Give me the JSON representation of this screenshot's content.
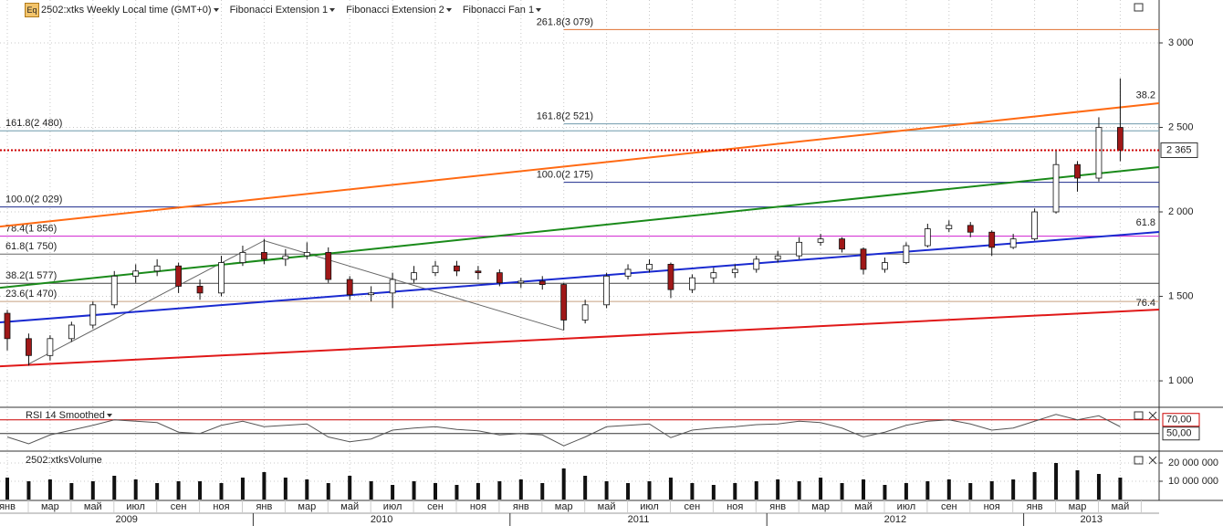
{
  "toolbar": {
    "icon": "Eq",
    "title": "2502:xtks Weekly Local time (GMT+0)",
    "studies": [
      "Fibonacci Extension 1",
      "Fibonacci Extension 2",
      "Fibonacci Fan 1"
    ]
  },
  "chart_data": [
    {
      "type": "candlestick",
      "ylim": [
        849,
        3254
      ],
      "yticks": [
        {
          "value": 1000,
          "label": "1 000"
        },
        {
          "value": 1500,
          "label": "1 500"
        },
        {
          "value": 2000,
          "label": "2 000"
        },
        {
          "value": 2500,
          "label": "2 500"
        },
        {
          "value": 3000,
          "label": "3 000"
        }
      ],
      "grid": true,
      "up_color": "#ffffff",
      "down_color": "#a01818",
      "open": [
        1400,
        1250,
        1150,
        1250,
        1330,
        1450,
        1620,
        1650,
        1680,
        1560,
        1520,
        1700,
        1760,
        1720,
        1740,
        1760,
        1600,
        1510,
        1520,
        1600,
        1640,
        1680,
        1650,
        1640,
        1580,
        1590,
        1570,
        1360,
        1450,
        1620,
        1660,
        1690,
        1540,
        1610,
        1640,
        1660,
        1720,
        1740,
        1820,
        1840,
        1780,
        1660,
        1700,
        1800,
        1900,
        1920,
        1880,
        1790,
        1840,
        2000,
        2280,
        2200,
        2500
      ],
      "high": [
        1420,
        1280,
        1270,
        1350,
        1470,
        1650,
        1690,
        1720,
        1700,
        1600,
        1740,
        1800,
        1840,
        1780,
        1820,
        1790,
        1620,
        1560,
        1640,
        1680,
        1710,
        1710,
        1680,
        1660,
        1610,
        1620,
        1580,
        1480,
        1640,
        1690,
        1720,
        1700,
        1630,
        1670,
        1690,
        1740,
        1770,
        1850,
        1870,
        1850,
        1790,
        1730,
        1820,
        1930,
        1950,
        1940,
        1890,
        1870,
        2020,
        2360,
        2300,
        2560,
        2790
      ],
      "low": [
        1180,
        1090,
        1120,
        1230,
        1310,
        1430,
        1580,
        1620,
        1520,
        1480,
        1500,
        1680,
        1690,
        1680,
        1720,
        1580,
        1480,
        1470,
        1430,
        1580,
        1620,
        1620,
        1600,
        1560,
        1550,
        1540,
        1300,
        1340,
        1430,
        1600,
        1640,
        1490,
        1520,
        1580,
        1610,
        1640,
        1700,
        1720,
        1800,
        1760,
        1630,
        1640,
        1690,
        1790,
        1880,
        1850,
        1740,
        1780,
        1830,
        1990,
        2120,
        2180,
        2300
      ],
      "close": [
        1250,
        1150,
        1250,
        1330,
        1450,
        1620,
        1650,
        1680,
        1560,
        1520,
        1700,
        1760,
        1720,
        1740,
        1760,
        1600,
        1510,
        1520,
        1600,
        1640,
        1680,
        1650,
        1640,
        1580,
        1590,
        1570,
        1360,
        1450,
        1620,
        1660,
        1690,
        1540,
        1610,
        1640,
        1660,
        1720,
        1740,
        1820,
        1840,
        1780,
        1660,
        1700,
        1800,
        1900,
        1920,
        1880,
        1790,
        1840,
        2000,
        2280,
        2200,
        2500,
        2365
      ],
      "last_price": {
        "value": 2365,
        "label": "2 365",
        "color": "#cc0000"
      },
      "fib_extension_1": {
        "levels": [
          {
            "value": 2480,
            "label": "161.8(2 480)",
            "color": "#6f9aac"
          },
          {
            "value": 2029,
            "label": "100.0(2 029)",
            "color": "#1c2a8c"
          },
          {
            "value": 1856,
            "label": "78.4(1 856)",
            "color": "#d020d0"
          },
          {
            "value": 1750,
            "label": "61.8(1 750)",
            "color": "#666666"
          },
          {
            "value": 1577,
            "label": "38.2(1 577)",
            "color": "#444444"
          },
          {
            "value": 1470,
            "label": "23.6(1 470)",
            "color": "#c8a080"
          }
        ]
      },
      "fib_extension_2": {
        "start": 26,
        "levels": [
          {
            "value": 3079,
            "label": "261.8(3 079)",
            "color": "#e07030"
          },
          {
            "value": 2521,
            "label": "161.8(2 521)",
            "color": "#6f9aac"
          },
          {
            "value": 2175,
            "label": "100.0(2 175)",
            "color": "#1c2a8c"
          }
        ]
      },
      "fan": {
        "lines": [
          {
            "color": "#ff6a13",
            "values": [
              1913,
              2643
            ]
          },
          {
            "color": "#1a8a1a",
            "values": [
              1551,
              2265
            ]
          },
          {
            "color": "#1a2ad0",
            "values": [
              1346,
              1881
            ]
          },
          {
            "color": "#e01818",
            "values": [
              1086,
              1422
            ]
          }
        ],
        "labels": [
          {
            "value": 2690,
            "label": "38.2"
          },
          {
            "value": 1935,
            "label": "61.8"
          },
          {
            "value": 1460,
            "label": "76.4"
          }
        ],
        "label_color": "#e07030"
      },
      "pivots": {
        "x": [
          1,
          12,
          26
        ],
        "values": [
          1100,
          1830,
          1300
        ]
      }
    },
    {
      "type": "line",
      "title": "RSI 14 Smoothed",
      "ylim": [
        27,
        87
      ],
      "yticks": [
        {
          "value": 70,
          "label": "70,00"
        },
        {
          "value": 50,
          "label": "50,00"
        }
      ],
      "color": "#555555",
      "values": [
        45,
        35,
        48,
        55,
        62,
        70,
        68,
        66,
        52,
        50,
        62,
        68,
        60,
        62,
        64,
        45,
        38,
        42,
        55,
        58,
        60,
        56,
        54,
        48,
        50,
        48,
        32,
        45,
        60,
        62,
        64,
        44,
        55,
        58,
        60,
        63,
        64,
        68,
        66,
        58,
        45,
        52,
        62,
        68,
        70,
        64,
        55,
        58,
        68,
        78,
        70,
        76,
        60
      ]
    },
    {
      "type": "bar",
      "title": "2502:xtksVolume",
      "ylim": [
        0,
        25000000
      ],
      "yticks": [
        {
          "value": 10000000,
          "label": "10 000 000"
        },
        {
          "value": 20000000,
          "label": "20 000 000"
        }
      ],
      "color": "#111111",
      "categories": [
        "янв",
        null,
        "мар",
        null,
        "май",
        null,
        "июл",
        null,
        "сен",
        null,
        "ноя",
        null,
        "янв",
        null,
        "мар",
        null,
        "май",
        null,
        "июл",
        null,
        "сен",
        null,
        "ноя",
        null,
        "янв",
        null,
        "мар",
        null,
        "май",
        null,
        "июл",
        null,
        "сен",
        null,
        "ноя",
        null,
        "янв",
        null,
        "мар",
        null,
        "май",
        null,
        "июл",
        null,
        "сен",
        null,
        "ноя",
        null,
        "янв",
        null,
        "мар",
        null,
        "май"
      ],
      "years": [
        "2009",
        "2010",
        "2011",
        "2012",
        "2013"
      ],
      "values": [
        12000000,
        10000000,
        11000000,
        9000000,
        10000000,
        13000000,
        11000000,
        9000000,
        10000000,
        10000000,
        9000000,
        12000000,
        15000000,
        12000000,
        11000000,
        9000000,
        13000000,
        10000000,
        8000000,
        10000000,
        9000000,
        8000000,
        9000000,
        10000000,
        11000000,
        9000000,
        17000000,
        13000000,
        10000000,
        9000000,
        10000000,
        12000000,
        9000000,
        8000000,
        9000000,
        10000000,
        11000000,
        10000000,
        12000000,
        9000000,
        11000000,
        8000000,
        9000000,
        10000000,
        11000000,
        9000000,
        10000000,
        11000000,
        15000000,
        20000000,
        16000000,
        14000000,
        12000000
      ]
    }
  ]
}
